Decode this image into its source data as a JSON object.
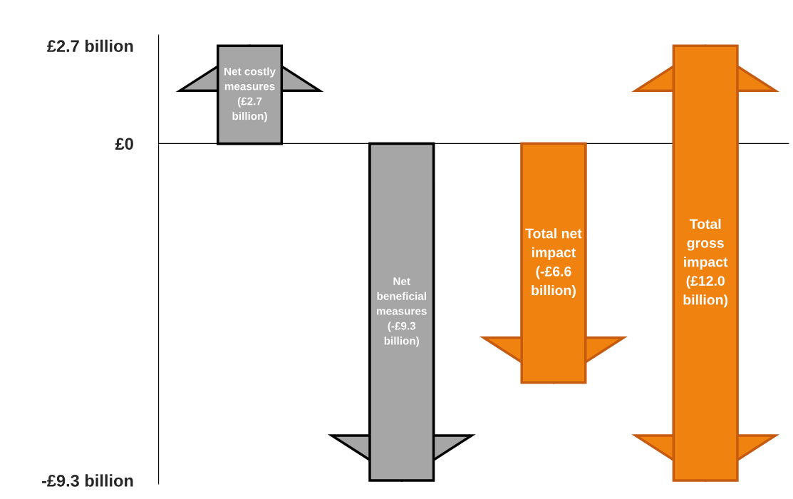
{
  "chart_data": {
    "type": "bar",
    "categories": [
      null,
      null,
      null,
      null
    ],
    "values": [
      2.7,
      -9.3,
      -6.6,
      12.0
    ],
    "base": [
      0,
      0,
      0,
      -9.3
    ],
    "colors": [
      "#a6a6a6",
      "#a6a6a6",
      "#f0820f",
      "#f0820f"
    ],
    "value_labels": [
      "Net costly measures (£2.7 billion)",
      "Net beneficial measures (-£9.3 billion)",
      "Total net impact (-£6.6 billion)",
      "Total gross impact (£12.0 billion)"
    ],
    "ylim": [
      -9.4,
      3.0
    ],
    "yticks": [
      {
        "value": 2.7,
        "label": "£2.7 billion"
      },
      {
        "value": 0,
        "label": "£0"
      },
      {
        "value": -9.3,
        "label": "-£9.3 billion"
      }
    ],
    "ref_lines": [
      {
        "axis": "y",
        "value": 0,
        "color": "#000000"
      }
    ],
    "legend": false
  }
}
